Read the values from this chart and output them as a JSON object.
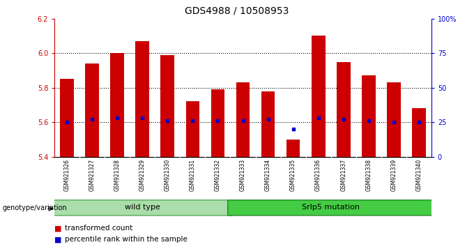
{
  "title": "GDS4988 / 10508953",
  "samples": [
    "GSM921326",
    "GSM921327",
    "GSM921328",
    "GSM921329",
    "GSM921330",
    "GSM921331",
    "GSM921332",
    "GSM921333",
    "GSM921334",
    "GSM921335",
    "GSM921336",
    "GSM921337",
    "GSM921338",
    "GSM921339",
    "GSM921340"
  ],
  "transformed_counts": [
    5.85,
    5.94,
    6.0,
    6.07,
    5.99,
    5.72,
    5.79,
    5.83,
    5.78,
    5.5,
    6.1,
    5.95,
    5.87,
    5.83,
    5.68
  ],
  "percentile_ranks": [
    25,
    27,
    28,
    28,
    26,
    26,
    26,
    26,
    27,
    20,
    28,
    27,
    26,
    25,
    25
  ],
  "wild_type_count": 7,
  "bar_color": "#CC0000",
  "percentile_color": "#0000CC",
  "label_bg": "#C8C8C8",
  "wt_color": "#AADDAA",
  "mut_color": "#44CC44",
  "ylim_left": [
    5.4,
    6.2
  ],
  "ylim_right": [
    0,
    100
  ],
  "left_ticks": [
    5.4,
    5.6,
    5.8,
    6.0,
    6.2
  ],
  "right_ticks": [
    0,
    25,
    50,
    75,
    100
  ],
  "right_tick_labels": [
    "0",
    "25",
    "50",
    "75",
    "100%"
  ],
  "dotted_lines": [
    5.6,
    5.8,
    6.0
  ],
  "title_fontsize": 10,
  "tick_fontsize": 7,
  "sample_fontsize": 5.5,
  "group_fontsize": 8,
  "legend_fontsize": 7.5,
  "genotype_label": "genotype/variation",
  "legend_red": "transformed count",
  "legend_blue": "percentile rank within the sample",
  "wt_label": "wild type",
  "mut_label": "Srlp5 mutation"
}
